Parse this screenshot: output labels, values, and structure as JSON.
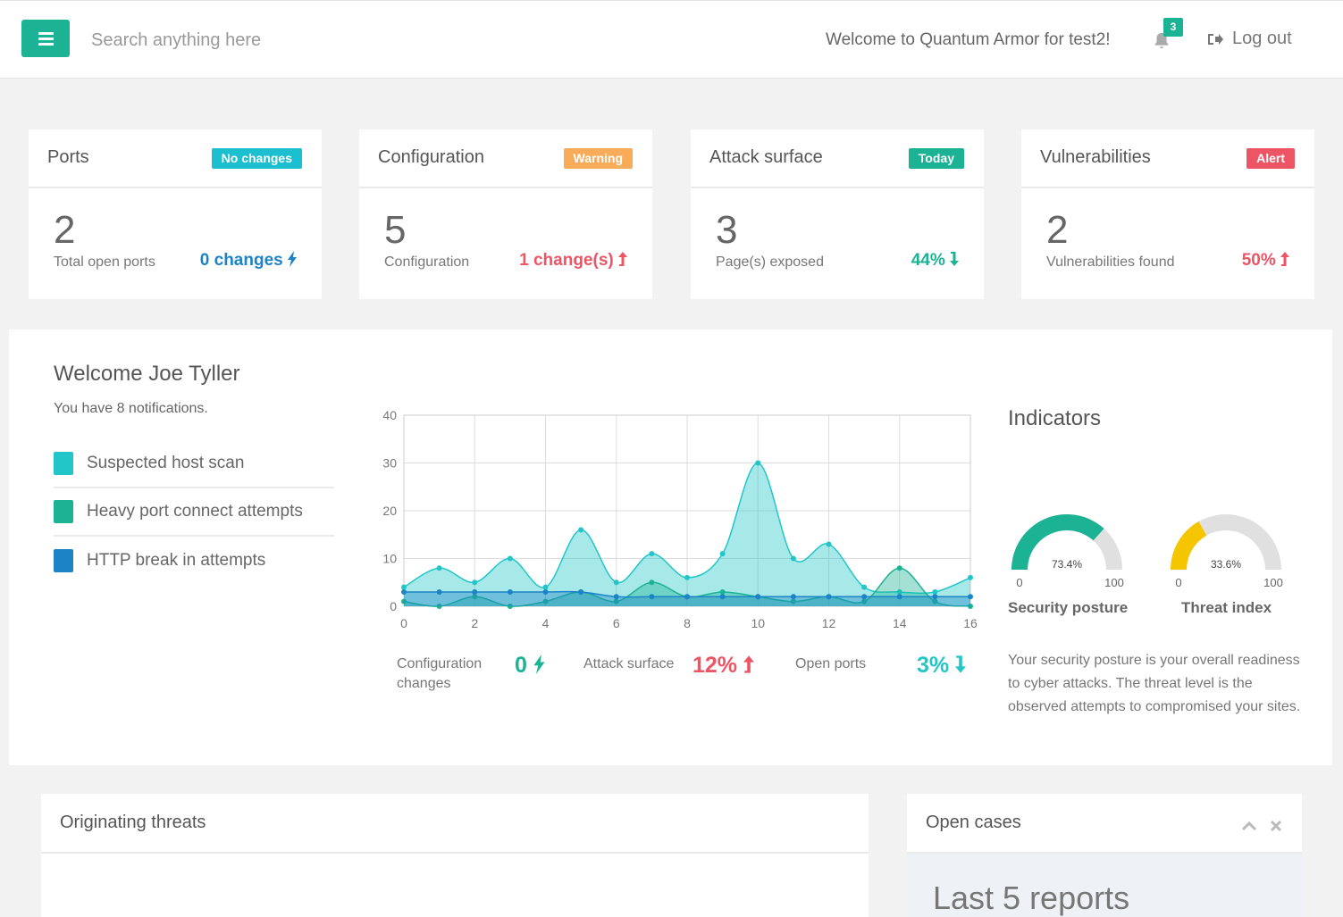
{
  "topbar": {
    "search_placeholder": "Search anything here",
    "welcome": "Welcome to Quantum Armor for test2!",
    "notification_count": "3",
    "logout_label": "Log out"
  },
  "cards": [
    {
      "title": "Ports",
      "badge": "No changes",
      "badge_color": "#1cbfcf",
      "value": "2",
      "subtitle": "Total open ports",
      "change": "0 changes",
      "change_icon": "bolt-icon",
      "change_color": "#1c84c6"
    },
    {
      "title": "Configuration",
      "badge": "Warning",
      "badge_color": "#f8ac59",
      "value": "5",
      "subtitle": "Configuration",
      "change": "1 change(s)",
      "change_icon": "arrow-up-icon",
      "change_color": "#ed5565"
    },
    {
      "title": "Attack surface",
      "badge": "Today",
      "badge_color": "#1cb394",
      "value": "3",
      "subtitle": "Page(s) exposed",
      "change": "44%",
      "change_icon": "arrow-down-icon",
      "change_color": "#1cb394"
    },
    {
      "title": "Vulnerabilities",
      "badge": "Alert",
      "badge_color": "#ed5565",
      "value": "2",
      "subtitle": "Vulnerabilities found",
      "change": "50%",
      "change_icon": "arrow-up-icon",
      "change_color": "#ed5565"
    }
  ],
  "main": {
    "greeting": "Welcome Joe Tyller",
    "notifications": "You have 8 notifications.",
    "legend": [
      {
        "label": "Suspected host scan",
        "color": "#23c6c8"
      },
      {
        "label": "Heavy port connect attempts",
        "color": "#1cb394"
      },
      {
        "label": "HTTP break in attempts",
        "color": "#1c84c6"
      }
    ],
    "stats": [
      {
        "label": "Configuration changes",
        "value": "0",
        "icon": "bolt-icon",
        "color": "#1cb394"
      },
      {
        "label": "Attack surface",
        "value": "12%",
        "icon": "arrow-up-icon",
        "color": "#ed5565"
      },
      {
        "label": "Open ports",
        "value": "3%",
        "icon": "arrow-down-icon",
        "color": "#23c6c8"
      }
    ]
  },
  "chart_data": {
    "type": "area",
    "x": [
      0,
      1,
      2,
      3,
      4,
      5,
      6,
      7,
      8,
      9,
      10,
      11,
      12,
      13,
      14,
      15,
      16
    ],
    "xticks": [
      0,
      2,
      4,
      6,
      8,
      10,
      12,
      14,
      16
    ],
    "yticks": [
      0,
      10,
      20,
      30,
      40
    ],
    "ylim": [
      0,
      40
    ],
    "xlim": [
      0,
      16
    ],
    "grid": true,
    "series": [
      {
        "name": "Suspected host scan",
        "color": "#23c6c8",
        "values": [
          4,
          8,
          5,
          10,
          4,
          16,
          5,
          11,
          6,
          11,
          30,
          10,
          13,
          4,
          3,
          3,
          6
        ]
      },
      {
        "name": "Heavy port connect attempts",
        "color": "#1cb394",
        "values": [
          1,
          0,
          2,
          0,
          1,
          3,
          1,
          5,
          2,
          3,
          2,
          1,
          2,
          1,
          8,
          1,
          0
        ]
      },
      {
        "name": "HTTP break in attempts",
        "color": "#1c84c6",
        "values": [
          3,
          3,
          3,
          3,
          3,
          3,
          2,
          2,
          2,
          2,
          2,
          2,
          2,
          2,
          2,
          2,
          2
        ]
      }
    ]
  },
  "indicators": {
    "title": "Indicators",
    "gauges": [
      {
        "name": "Security posture",
        "value": 73.4,
        "value_label": "73.4%",
        "min": "0",
        "max": "100",
        "color": "#1cb394"
      },
      {
        "name": "Threat index",
        "value": 33.6,
        "value_label": "33.6%",
        "min": "0",
        "max": "100",
        "color": "#f5c500"
      }
    ],
    "description": "Your security posture is your overall readiness to cyber attacks. The threat level is the observed attempts to compromised your sites."
  },
  "panels": {
    "threats_title": "Originating threats",
    "cases_title": "Open cases",
    "cases_subtitle": "Last 5 reports"
  }
}
